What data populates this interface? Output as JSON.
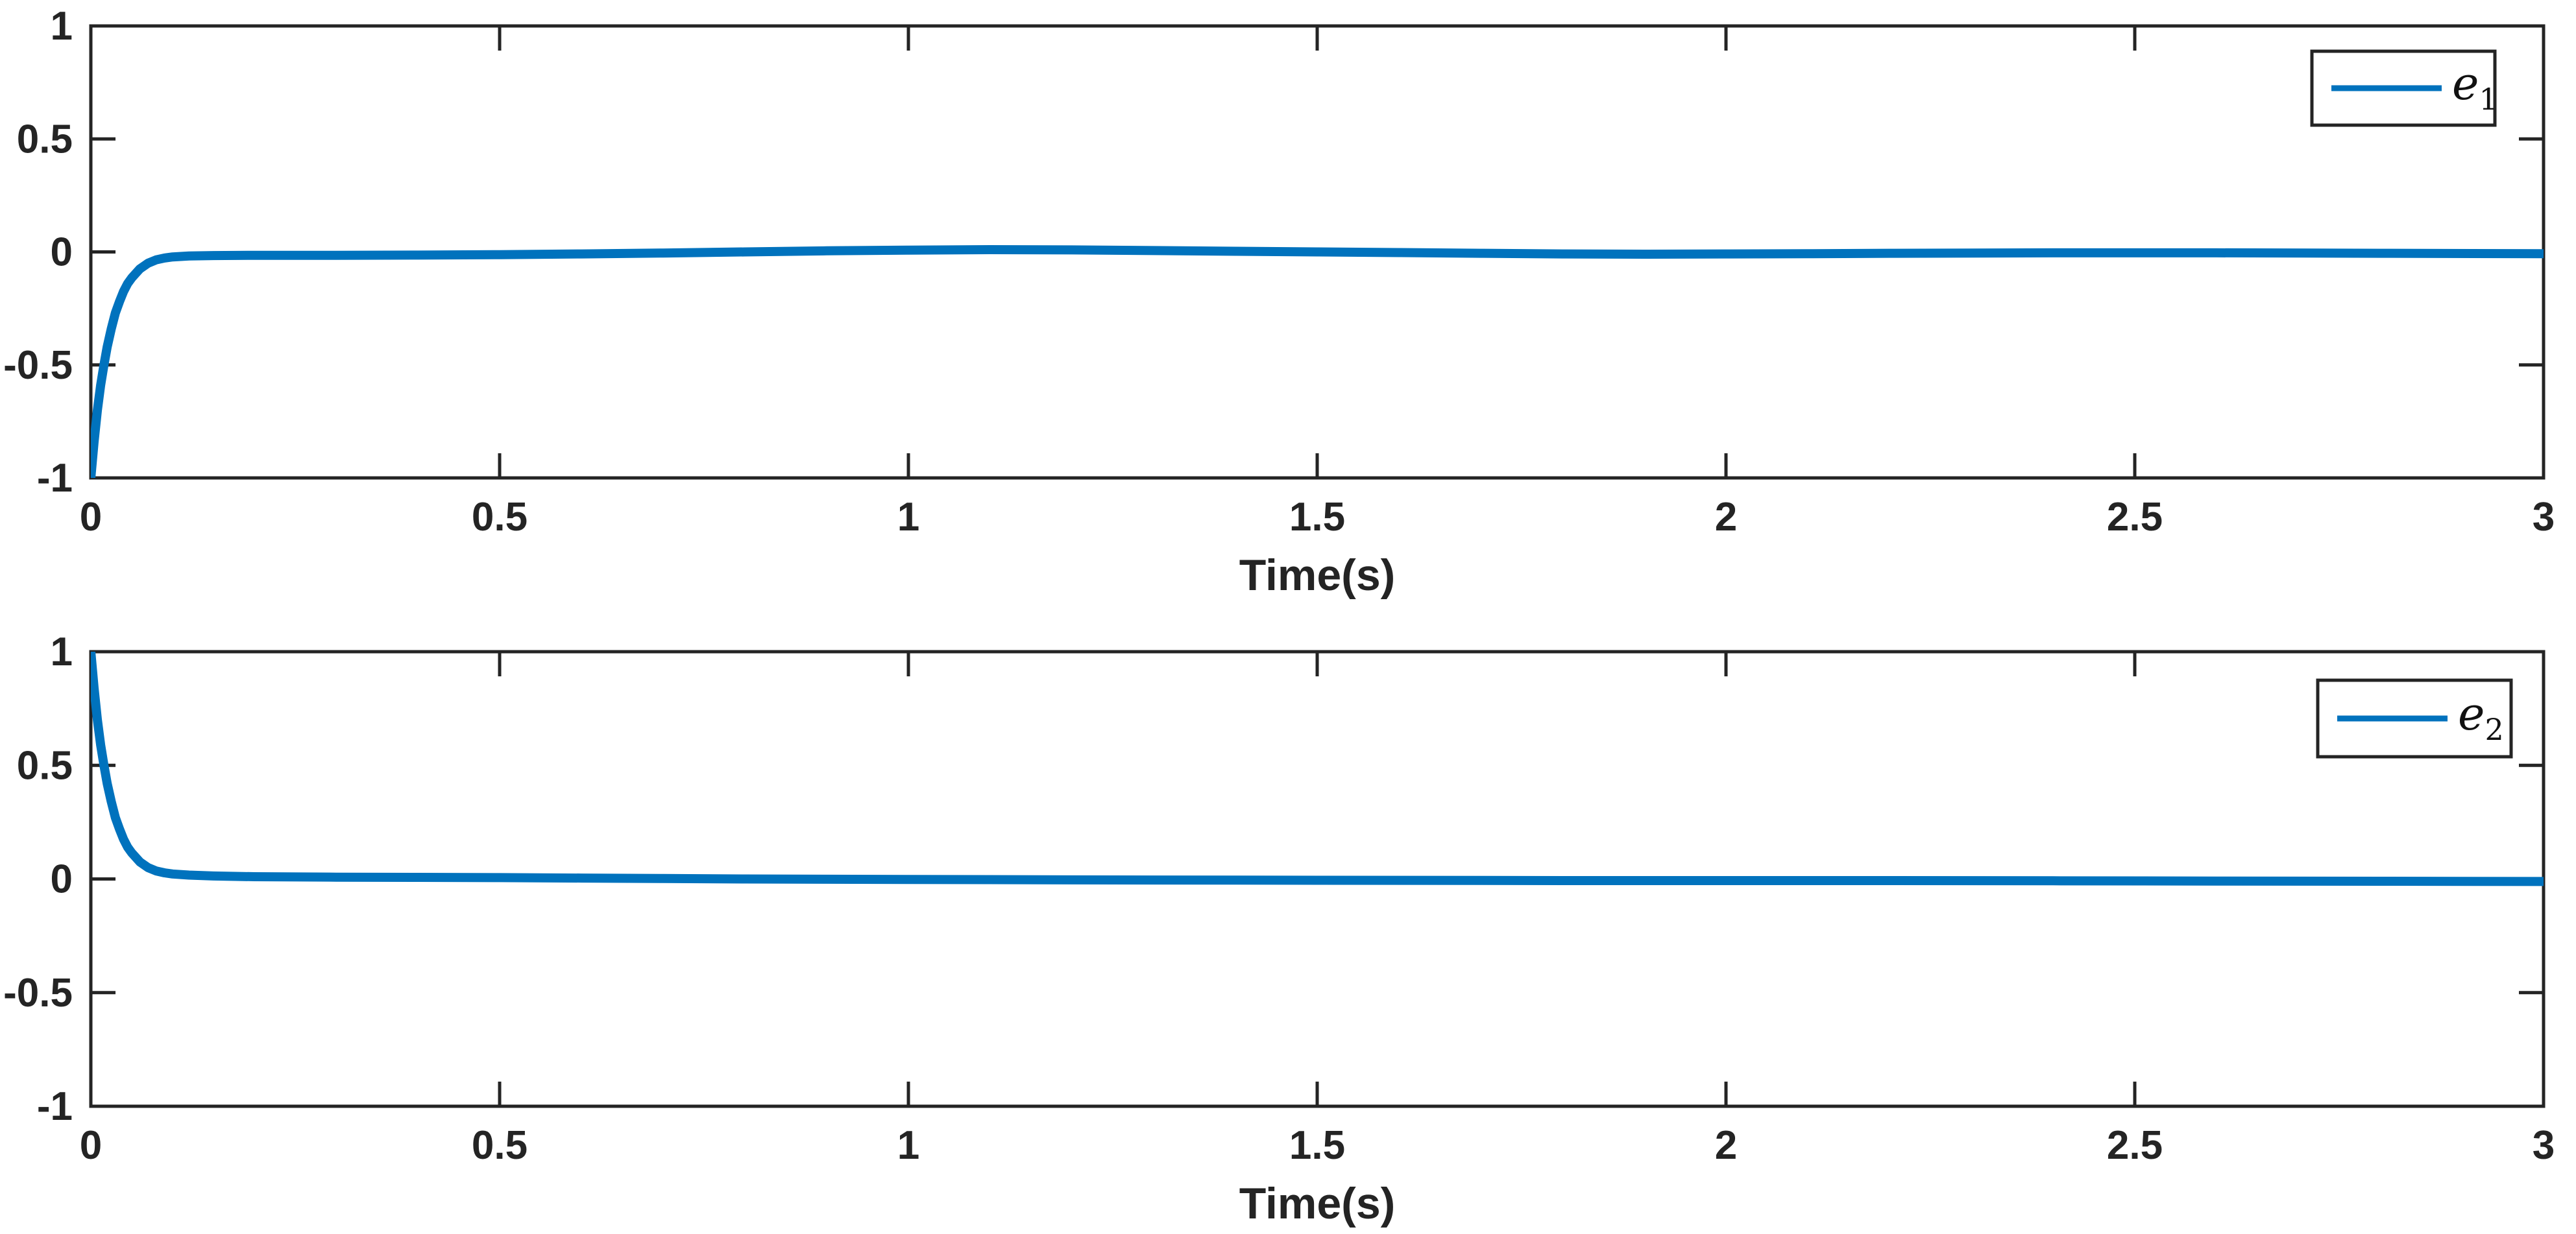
{
  "figure": {
    "background": "#ffffff",
    "axis_color": "#242424",
    "line_color": "#0072BD"
  },
  "chart_data": [
    {
      "type": "line",
      "subplot": "top",
      "title": "",
      "xlabel": "Time(s)",
      "ylabel": "",
      "xlim": [
        0,
        3
      ],
      "ylim": [
        -1,
        1
      ],
      "grid": false,
      "x_ticks": [
        0,
        0.5,
        1,
        1.5,
        2,
        2.5,
        3
      ],
      "x_tick_labels": [
        "0",
        "0.5",
        "1",
        "1.5",
        "2",
        "2.5",
        "3"
      ],
      "y_ticks": [
        -1,
        -0.5,
        0,
        0.5,
        1
      ],
      "y_tick_labels": [
        "-1",
        "-0.5",
        "0",
        "0.5",
        "1"
      ],
      "legend": {
        "position": "top-right",
        "name": "e1",
        "base": "e",
        "sub": "1"
      },
      "series": [
        {
          "name": "e1",
          "color": "#0072BD",
          "points": [
            [
              0,
              -1
            ],
            [
              0.004,
              -0.84
            ],
            [
              0.008,
              -0.7
            ],
            [
              0.012,
              -0.59
            ],
            [
              0.016,
              -0.5
            ],
            [
              0.02,
              -0.42
            ],
            [
              0.025,
              -0.34
            ],
            [
              0.03,
              -0.27
            ],
            [
              0.035,
              -0.22
            ],
            [
              0.04,
              -0.175
            ],
            [
              0.045,
              -0.14
            ],
            [
              0.05,
              -0.115
            ],
            [
              0.06,
              -0.075
            ],
            [
              0.07,
              -0.05
            ],
            [
              0.08,
              -0.035
            ],
            [
              0.09,
              -0.027
            ],
            [
              0.1,
              -0.022
            ],
            [
              0.12,
              -0.018
            ],
            [
              0.15,
              -0.016
            ],
            [
              0.2,
              -0.015
            ],
            [
              0.3,
              -0.015
            ],
            [
              0.4,
              -0.014
            ],
            [
              0.5,
              -0.012
            ],
            [
              0.6,
              -0.009
            ],
            [
              0.7,
              -0.005
            ],
            [
              0.8,
              0
            ],
            [
              0.9,
              0.005
            ],
            [
              1.0,
              0.008
            ],
            [
              1.1,
              0.01
            ],
            [
              1.2,
              0.009
            ],
            [
              1.3,
              0.006
            ],
            [
              1.4,
              0.003
            ],
            [
              1.5,
              0
            ],
            [
              1.6,
              -0.003
            ],
            [
              1.7,
              -0.006
            ],
            [
              1.8,
              -0.009
            ],
            [
              1.9,
              -0.01
            ],
            [
              2.0,
              -0.009
            ],
            [
              2.1,
              -0.008
            ],
            [
              2.2,
              -0.006
            ],
            [
              2.4,
              -0.004
            ],
            [
              2.6,
              -0.004
            ],
            [
              2.8,
              -0.006
            ],
            [
              3.0,
              -0.008
            ]
          ]
        }
      ]
    },
    {
      "type": "line",
      "subplot": "bottom",
      "title": "",
      "xlabel": "Time(s)",
      "ylabel": "",
      "xlim": [
        0,
        3
      ],
      "ylim": [
        -1,
        1
      ],
      "grid": false,
      "x_ticks": [
        0,
        0.5,
        1,
        1.5,
        2,
        2.5,
        3
      ],
      "x_tick_labels": [
        "0",
        "0.5",
        "1",
        "1.5",
        "2",
        "2.5",
        "3"
      ],
      "y_ticks": [
        -1,
        -0.5,
        0,
        0.5,
        1
      ],
      "y_tick_labels": [
        "-1",
        "-0.5",
        "0",
        "0.5",
        "1"
      ],
      "legend": {
        "position": "top-right",
        "name": "e2",
        "base": "e",
        "sub": "2"
      },
      "series": [
        {
          "name": "e2",
          "color": "#0072BD",
          "points": [
            [
              0,
              1
            ],
            [
              0.004,
              0.84
            ],
            [
              0.008,
              0.7
            ],
            [
              0.012,
              0.59
            ],
            [
              0.016,
              0.5
            ],
            [
              0.02,
              0.42
            ],
            [
              0.025,
              0.34
            ],
            [
              0.03,
              0.27
            ],
            [
              0.035,
              0.22
            ],
            [
              0.04,
              0.175
            ],
            [
              0.045,
              0.14
            ],
            [
              0.05,
              0.115
            ],
            [
              0.06,
              0.075
            ],
            [
              0.07,
              0.05
            ],
            [
              0.08,
              0.035
            ],
            [
              0.09,
              0.027
            ],
            [
              0.1,
              0.022
            ],
            [
              0.12,
              0.017
            ],
            [
              0.15,
              0.013
            ],
            [
              0.2,
              0.01
            ],
            [
              0.3,
              0.008
            ],
            [
              0.4,
              0.007
            ],
            [
              0.5,
              0.006
            ],
            [
              0.6,
              0.004
            ],
            [
              0.7,
              0.002
            ],
            [
              0.8,
              0
            ],
            [
              0.9,
              -0.001
            ],
            [
              1.0,
              -0.002
            ],
            [
              1.2,
              -0.004
            ],
            [
              1.4,
              -0.005
            ],
            [
              1.6,
              -0.006
            ],
            [
              1.8,
              -0.007
            ],
            [
              2.0,
              -0.007
            ],
            [
              2.2,
              -0.007
            ],
            [
              2.4,
              -0.008
            ],
            [
              2.6,
              -0.009
            ],
            [
              2.8,
              -0.01
            ],
            [
              3.0,
              -0.011
            ]
          ]
        }
      ]
    }
  ]
}
